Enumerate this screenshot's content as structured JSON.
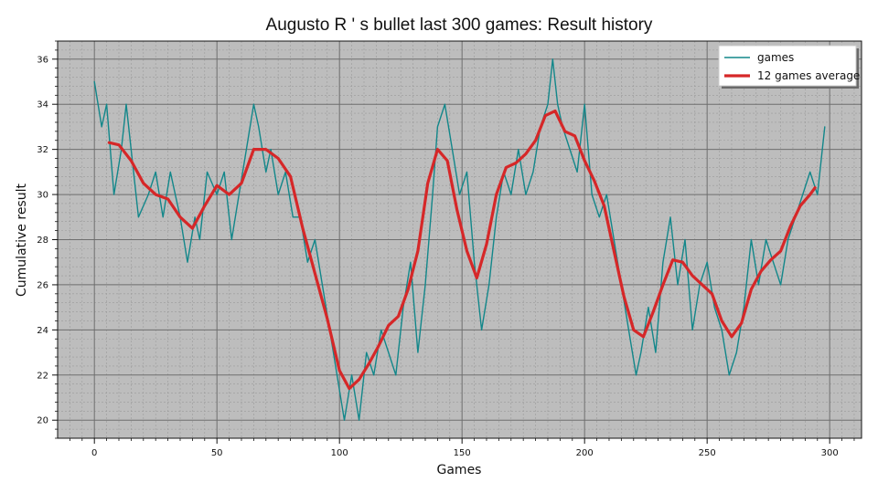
{
  "chart_data": {
    "type": "line",
    "title": "Augusto R ' s bullet last 300 games: Result history",
    "xlabel": "Games",
    "ylabel": "Cumulative result",
    "xlim": [
      -15,
      313
    ],
    "ylim": [
      19.2,
      36.8
    ],
    "x_ticks": [
      0,
      50,
      100,
      150,
      200,
      250,
      300
    ],
    "y_ticks": [
      20,
      22,
      24,
      26,
      28,
      30,
      32,
      34,
      36
    ],
    "grid": true,
    "legend_position": "top-right",
    "series": [
      {
        "name": "games",
        "color": "#12878a",
        "x": [
          0,
          3,
          5,
          8,
          11,
          13,
          18,
          22,
          25,
          28,
          31,
          35,
          38,
          41,
          43,
          46,
          50,
          53,
          56,
          59,
          62,
          65,
          67,
          70,
          72,
          75,
          78,
          81,
          84,
          87,
          90,
          93,
          96,
          99,
          102,
          105,
          108,
          111,
          114,
          117,
          120,
          123,
          126,
          129,
          132,
          135,
          138,
          140,
          143,
          146,
          149,
          152,
          155,
          158,
          161,
          164,
          167,
          170,
          173,
          176,
          179,
          182,
          185,
          187,
          189,
          191,
          194,
          197,
          200,
          203,
          206,
          209,
          212,
          215,
          218,
          221,
          223,
          226,
          229,
          232,
          235,
          238,
          241,
          244,
          247,
          250,
          253,
          256,
          259,
          262,
          265,
          268,
          271,
          274,
          277,
          280,
          283,
          286,
          289,
          292,
          295,
          298
        ],
        "y": [
          35,
          33,
          34,
          30,
          32,
          34,
          29,
          30,
          31,
          29,
          31,
          29,
          27,
          29,
          28,
          31,
          30,
          31,
          28,
          30,
          32,
          34,
          33,
          31,
          32,
          30,
          31,
          29,
          29,
          27,
          28,
          26,
          24,
          22,
          20,
          22,
          20,
          23,
          22,
          24,
          23,
          22,
          25,
          27,
          23,
          26,
          30,
          33,
          34,
          32,
          30,
          31,
          27,
          24,
          26,
          29,
          31,
          30,
          32,
          30,
          31,
          33,
          34,
          36,
          34,
          33,
          32,
          31,
          34,
          30,
          29,
          30,
          28,
          26,
          24,
          22,
          23,
          25,
          23,
          27,
          29,
          26,
          28,
          24,
          26,
          27,
          25,
          24,
          22,
          23,
          25,
          28,
          26,
          28,
          27,
          26,
          28,
          29,
          30,
          31,
          30,
          33
        ]
      },
      {
        "name": "12 games average",
        "color": "#d62728",
        "x": [
          6,
          10,
          15,
          20,
          25,
          30,
          35,
          40,
          45,
          50,
          55,
          60,
          65,
          70,
          75,
          80,
          85,
          90,
          95,
          100,
          104,
          108,
          112,
          116,
          120,
          124,
          128,
          132,
          136,
          140,
          144,
          148,
          152,
          156,
          160,
          164,
          168,
          172,
          176,
          180,
          184,
          188,
          192,
          196,
          200,
          204,
          208,
          212,
          216,
          220,
          224,
          228,
          232,
          236,
          240,
          244,
          248,
          252,
          256,
          260,
          264,
          268,
          272,
          276,
          280,
          284,
          288,
          292,
          294
        ],
        "y": [
          32.3,
          32.2,
          31.5,
          30.5,
          30.0,
          29.8,
          29.0,
          28.5,
          29.5,
          30.4,
          30.0,
          30.5,
          32.0,
          32.0,
          31.6,
          30.8,
          28.5,
          26.5,
          24.5,
          22.2,
          21.4,
          21.8,
          22.5,
          23.3,
          24.2,
          24.6,
          25.8,
          27.5,
          30.5,
          32.0,
          31.5,
          29.3,
          27.5,
          26.3,
          27.8,
          30.0,
          31.2,
          31.4,
          31.8,
          32.4,
          33.5,
          33.7,
          32.8,
          32.6,
          31.5,
          30.6,
          29.5,
          27.5,
          25.5,
          24.0,
          23.7,
          24.8,
          26.0,
          27.1,
          27.0,
          26.4,
          26.0,
          25.6,
          24.4,
          23.7,
          24.3,
          25.8,
          26.6,
          27.1,
          27.5,
          28.6,
          29.5,
          30.0,
          30.3
        ]
      }
    ]
  }
}
